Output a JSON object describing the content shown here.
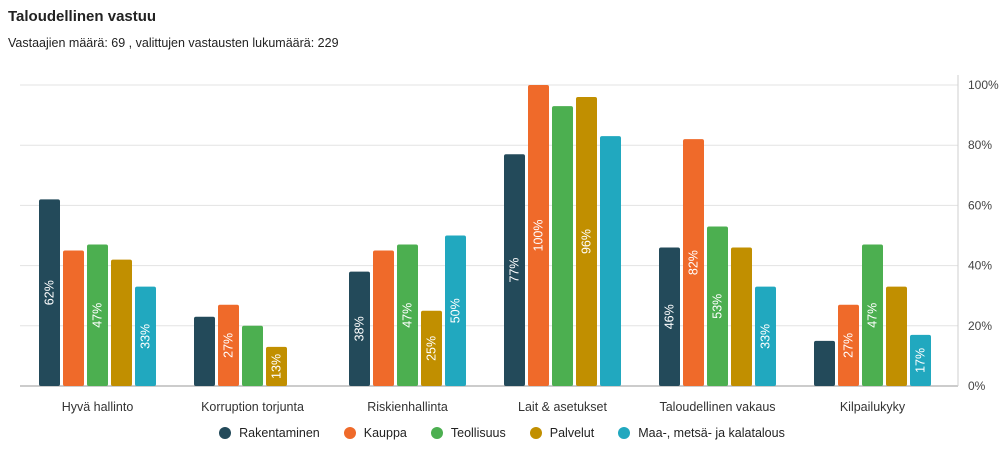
{
  "header": {
    "title": "Taloudellinen vastuu",
    "subtitle": "Vastaajien määrä: 69 , valittujen vastausten lukumäärä: 229"
  },
  "chart_data": {
    "type": "bar",
    "title": "Taloudellinen vastuu",
    "xlabel": "",
    "ylabel": "",
    "ylim": [
      0,
      100
    ],
    "yticks": [
      "0%",
      "20%",
      "40%",
      "60%",
      "80%",
      "100%"
    ],
    "ytick_values": [
      0,
      20,
      40,
      60,
      80,
      100
    ],
    "y_axis_side": "right",
    "grid": true,
    "legend_position": "bottom",
    "categories": [
      "Hyvä hallinto",
      "Korruption torjunta",
      "Riskienhallinta",
      "Lait & asetukset",
      "Taloudellinen vakaus",
      "Kilpailukyky"
    ],
    "series": [
      {
        "name": "Rakentaminen",
        "color": "#234a5a",
        "values": [
          62,
          23,
          38,
          77,
          46,
          15
        ],
        "labels": [
          "62%",
          "",
          "38%",
          "77%",
          "46%",
          ""
        ]
      },
      {
        "name": "Kauppa",
        "color": "#ef6a2a",
        "values": [
          45,
          27,
          45,
          100,
          82,
          27
        ],
        "labels": [
          "",
          "27%",
          "",
          "100%",
          "82%",
          "27%"
        ]
      },
      {
        "name": "Teollisuus",
        "color": "#4caf50",
        "values": [
          47,
          20,
          47,
          93,
          53,
          47
        ],
        "labels": [
          "47%",
          "",
          "47%",
          "",
          "53%",
          "47%"
        ]
      },
      {
        "name": "Palvelut",
        "color": "#c18f00",
        "values": [
          42,
          13,
          25,
          96,
          46,
          33
        ],
        "labels": [
          "",
          "13%",
          "25%",
          "96%",
          "",
          ""
        ]
      },
      {
        "name": "Maa-, metsä- ja kalatalous",
        "color": "#21a8bf",
        "values": [
          33,
          0,
          50,
          83,
          33,
          17
        ],
        "labels": [
          "33%",
          "",
          "50%",
          "",
          "33%",
          "17%"
        ]
      }
    ]
  }
}
